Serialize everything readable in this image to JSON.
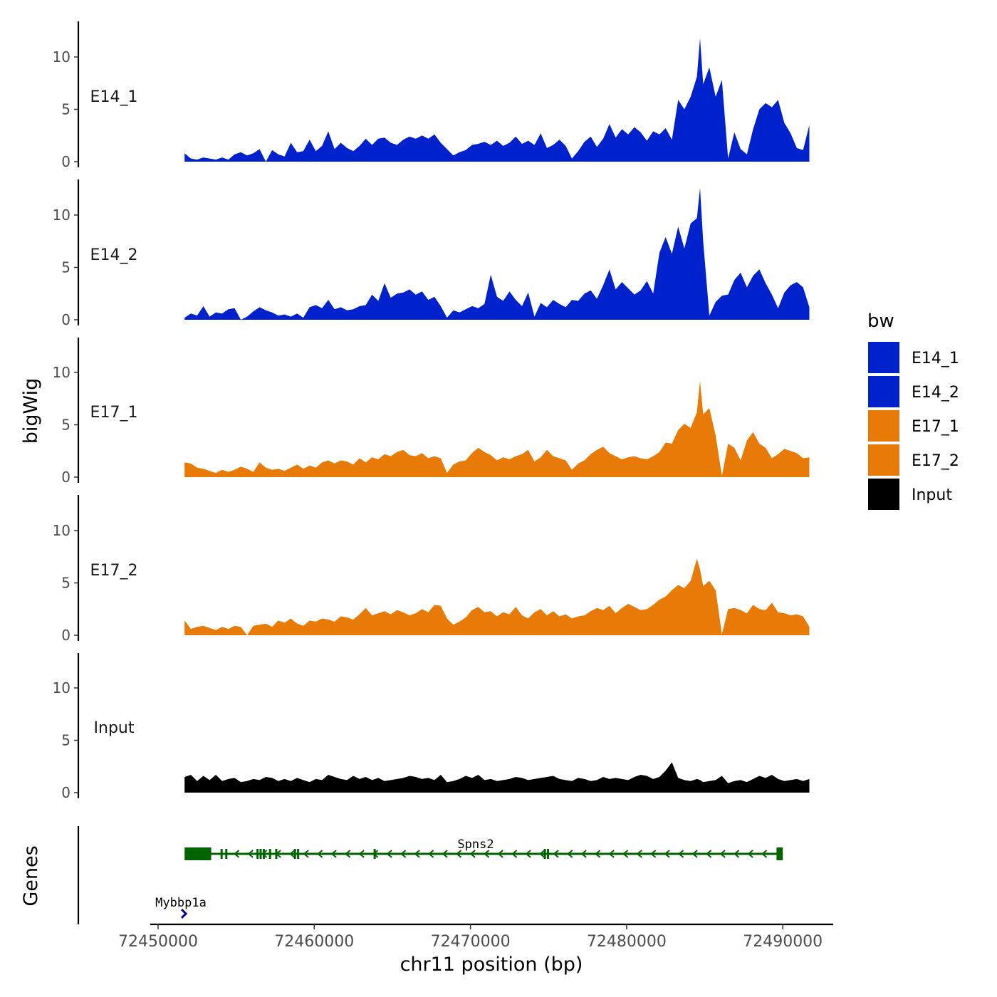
{
  "chart_data": {
    "type": "area",
    "title": "",
    "xlabel": "chr11 position (bp)",
    "ylabel": "bigWig",
    "genes_label": "Genes",
    "chromosome": "chr11",
    "xlim": [
      72449500,
      72493000
    ],
    "ylim": [
      0,
      13.5
    ],
    "x_ticks": [
      72450000,
      72460000,
      72470000,
      72480000,
      72490000
    ],
    "x_tick_labels": [
      "72450000",
      "72460000",
      "72470000",
      "72480000",
      "72490000"
    ],
    "y_ticks": [
      0,
      5,
      10
    ],
    "y_tick_labels": [
      "0",
      "5",
      "10"
    ],
    "legend": {
      "title": "bw",
      "position": "right",
      "entries": [
        {
          "label": "E14_1",
          "color": "#0022CC"
        },
        {
          "label": "E14_2",
          "color": "#0022CC"
        },
        {
          "label": "E17_1",
          "color": "#E87A07"
        },
        {
          "label": "E17_2",
          "color": "#E87A07"
        },
        {
          "label": "Input",
          "color": "#000000"
        }
      ]
    },
    "x": [
      72451700,
      72452100,
      72452500,
      72452900,
      72453300,
      72453700,
      72454100,
      72454500,
      72454900,
      72455300,
      72455700,
      72456100,
      72456500,
      72456900,
      72457300,
      72457700,
      72458100,
      72458500,
      72458900,
      72459300,
      72459700,
      72460100,
      72460500,
      72460900,
      72461300,
      72461700,
      72462100,
      72462500,
      72462900,
      72463300,
      72463700,
      72464100,
      72464500,
      72464900,
      72465300,
      72465700,
      72466100,
      72466500,
      72466900,
      72467300,
      72467700,
      72468100,
      72468500,
      72468900,
      72469300,
      72469700,
      72470100,
      72470500,
      72470900,
      72471300,
      72471700,
      72472100,
      72472500,
      72472900,
      72473300,
      72473700,
      72474100,
      72474500,
      72474900,
      72475300,
      72475700,
      72476100,
      72476500,
      72476900,
      72477300,
      72477700,
      72478100,
      72478500,
      72478900,
      72479300,
      72479700,
      72480100,
      72480500,
      72480900,
      72481300,
      72481700,
      72482100,
      72482500,
      72482900,
      72483300,
      72483700,
      72484100,
      72484500,
      72484700,
      72484900,
      72485300,
      72485700,
      72486100,
      72486500,
      72486900,
      72487300,
      72487700,
      72488100,
      72488500,
      72488900,
      72489300,
      72489700,
      72490100,
      72490500,
      72490900,
      72491300,
      72491700
    ],
    "series": [
      {
        "name": "E14_1",
        "color": "#0022CC",
        "values": [
          0.8,
          0.3,
          0.2,
          0.4,
          0.3,
          0.2,
          0.4,
          0.2,
          0.7,
          0.9,
          0.6,
          0.8,
          1.2,
          0.0,
          1.1,
          0.7,
          0.5,
          1.8,
          0.9,
          1.0,
          2.1,
          1.0,
          1.5,
          2.9,
          1.2,
          1.8,
          1.3,
          1.0,
          1.5,
          2.2,
          1.6,
          2.2,
          2.3,
          1.8,
          1.6,
          2.1,
          2.4,
          2.2,
          2.5,
          2.2,
          2.6,
          1.8,
          1.2,
          0.6,
          0.9,
          1.1,
          1.6,
          1.7,
          1.9,
          1.6,
          2.0,
          1.5,
          1.8,
          2.4,
          1.7,
          2.0,
          1.6,
          2.7,
          1.3,
          1.6,
          2.1,
          1.5,
          0.3,
          1.0,
          1.9,
          2.4,
          1.4,
          2.2,
          3.6,
          2.3,
          3.1,
          2.6,
          3.3,
          2.8,
          2.0,
          2.9,
          2.6,
          3.2,
          2.1,
          5.9,
          5.0,
          6.2,
          8.1,
          11.8,
          7.4,
          9.0,
          6.2,
          7.8,
          0.3,
          2.8,
          1.2,
          0.7,
          3.1,
          5.0,
          5.6,
          5.2,
          5.9,
          3.7,
          2.7,
          1.3,
          1.1,
          3.5
        ]
      },
      {
        "name": "E14_2",
        "color": "#0022CC",
        "values": [
          0.2,
          0.6,
          0.4,
          1.3,
          0.3,
          0.7,
          0.6,
          1.0,
          1.1,
          0.0,
          0.3,
          0.8,
          1.2,
          0.9,
          0.7,
          0.4,
          0.5,
          0.3,
          0.6,
          0.2,
          1.2,
          1.4,
          1.1,
          1.9,
          1.0,
          1.2,
          0.9,
          1.0,
          1.3,
          1.4,
          2.4,
          1.8,
          3.5,
          2.1,
          2.5,
          2.6,
          2.9,
          2.4,
          2.7,
          1.9,
          2.2,
          1.3,
          0.2,
          0.9,
          0.7,
          1.0,
          1.3,
          1.1,
          1.5,
          4.3,
          2.2,
          1.8,
          2.7,
          1.9,
          1.3,
          2.6,
          0.3,
          1.6,
          1.2,
          1.9,
          1.5,
          1.2,
          1.9,
          1.8,
          2.5,
          2.8,
          2.0,
          3.3,
          4.8,
          2.9,
          3.6,
          3.0,
          2.4,
          2.8,
          3.7,
          2.5,
          6.4,
          7.9,
          6.3,
          8.9,
          6.8,
          9.2,
          9.7,
          12.6,
          7.5,
          0.4,
          1.7,
          2.3,
          2.4,
          3.8,
          4.5,
          3.1,
          4.2,
          4.8,
          3.5,
          2.4,
          1.1,
          2.6,
          3.3,
          3.6,
          3.1,
          1.2
        ]
      },
      {
        "name": "E17_1",
        "color": "#E87A07",
        "values": [
          1.4,
          1.3,
          0.9,
          0.8,
          0.6,
          0.4,
          0.7,
          0.5,
          0.7,
          1.0,
          0.8,
          0.5,
          1.4,
          0.9,
          0.7,
          0.8,
          0.6,
          0.9,
          1.2,
          0.8,
          1.1,
          0.9,
          1.4,
          1.6,
          1.3,
          1.6,
          1.5,
          1.2,
          1.8,
          1.4,
          1.9,
          1.7,
          2.2,
          2.0,
          2.4,
          2.6,
          2.1,
          2.0,
          2.3,
          1.8,
          2.0,
          1.8,
          0.4,
          1.2,
          1.5,
          1.6,
          2.3,
          2.8,
          2.4,
          2.1,
          1.6,
          1.9,
          1.7,
          2.0,
          2.2,
          2.6,
          1.5,
          1.9,
          2.6,
          2.0,
          1.8,
          1.6,
          0.7,
          1.3,
          1.6,
          2.2,
          2.6,
          2.9,
          2.3,
          2.0,
          1.7,
          1.9,
          2.0,
          1.8,
          1.7,
          2.0,
          2.4,
          3.3,
          3.2,
          4.5,
          5.1,
          4.7,
          6.2,
          9.2,
          6.0,
          6.6,
          4.0,
          0.1,
          3.2,
          2.8,
          1.6,
          3.5,
          4.3,
          3.2,
          2.8,
          1.8,
          2.2,
          2.7,
          2.5,
          2.3,
          1.8,
          1.9
        ]
      },
      {
        "name": "E17_2",
        "color": "#E87A07",
        "values": [
          1.4,
          0.6,
          0.8,
          0.9,
          0.7,
          0.5,
          0.8,
          0.6,
          0.9,
          0.8,
          0.0,
          0.9,
          1.0,
          1.1,
          0.8,
          1.4,
          1.2,
          1.6,
          1.1,
          0.9,
          1.4,
          1.3,
          1.6,
          1.5,
          1.3,
          1.8,
          1.7,
          1.5,
          2.0,
          2.6,
          1.9,
          2.1,
          2.3,
          2.0,
          2.4,
          2.2,
          1.9,
          2.1,
          2.5,
          2.2,
          2.9,
          2.8,
          1.6,
          1.0,
          1.3,
          1.7,
          2.4,
          2.7,
          2.2,
          2.3,
          1.8,
          2.2,
          2.0,
          2.7,
          1.9,
          1.6,
          2.2,
          2.5,
          1.9,
          2.3,
          1.8,
          2.0,
          1.6,
          1.8,
          1.9,
          2.3,
          2.6,
          2.4,
          2.8,
          2.1,
          2.6,
          3.0,
          2.7,
          2.4,
          2.5,
          2.9,
          3.4,
          3.7,
          4.3,
          4.8,
          4.5,
          5.2,
          7.3,
          6.3,
          4.7,
          5.2,
          4.3,
          0.1,
          2.5,
          2.6,
          2.4,
          2.1,
          2.9,
          2.5,
          2.4,
          3.1,
          2.2,
          2.1,
          1.9,
          2.0,
          1.8,
          0.8
        ]
      },
      {
        "name": "Input",
        "color": "#000000",
        "values": [
          1.5,
          1.7,
          1.1,
          1.6,
          1.2,
          1.7,
          1.1,
          1.3,
          1.4,
          1.0,
          1.1,
          1.3,
          1.2,
          1.5,
          1.4,
          1.1,
          1.3,
          1.1,
          1.4,
          1.2,
          1.0,
          1.3,
          1.2,
          1.7,
          1.5,
          1.3,
          1.2,
          1.6,
          1.3,
          1.5,
          1.2,
          1.4,
          1.1,
          1.2,
          1.3,
          1.4,
          1.6,
          1.5,
          1.3,
          1.4,
          1.2,
          1.7,
          1.0,
          1.1,
          1.3,
          1.6,
          1.4,
          1.7,
          1.2,
          1.3,
          1.1,
          1.2,
          1.3,
          1.5,
          1.4,
          1.2,
          1.3,
          1.4,
          1.5,
          1.6,
          1.3,
          1.2,
          1.1,
          1.4,
          1.3,
          1.1,
          1.2,
          1.5,
          1.3,
          1.4,
          1.3,
          1.2,
          1.5,
          1.7,
          1.6,
          1.3,
          1.5,
          2.1,
          2.9,
          1.4,
          1.2,
          1.1,
          1.3,
          1.2,
          1.0,
          1.1,
          1.2,
          1.6,
          0.9,
          1.1,
          1.2,
          1.0,
          1.3,
          1.6,
          1.4,
          1.7,
          1.3,
          1.1,
          1.2,
          1.3,
          1.1,
          1.3
        ]
      }
    ],
    "genes": [
      {
        "name": "Spns2",
        "strand": "-",
        "color": "#006400",
        "start": 72451700,
        "end": 72490000,
        "exons": [
          [
            72451700,
            72453400
          ],
          [
            72454000,
            72454100
          ],
          [
            72454300,
            72454400
          ],
          [
            72456300,
            72456350
          ],
          [
            72456500,
            72456600
          ],
          [
            72456700,
            72456750
          ],
          [
            72457100,
            72457150
          ],
          [
            72457500,
            72457550
          ],
          [
            72458700,
            72458750
          ],
          [
            72458900,
            72458950
          ],
          [
            72463800,
            72463850
          ],
          [
            72474700,
            72474750
          ],
          [
            72474900,
            72474950
          ],
          [
            72489600,
            72490000
          ]
        ]
      },
      {
        "name": "Mybbp1a",
        "strand": "+",
        "color": "#00008B",
        "start": 72451600,
        "end": 72451800
      }
    ]
  }
}
